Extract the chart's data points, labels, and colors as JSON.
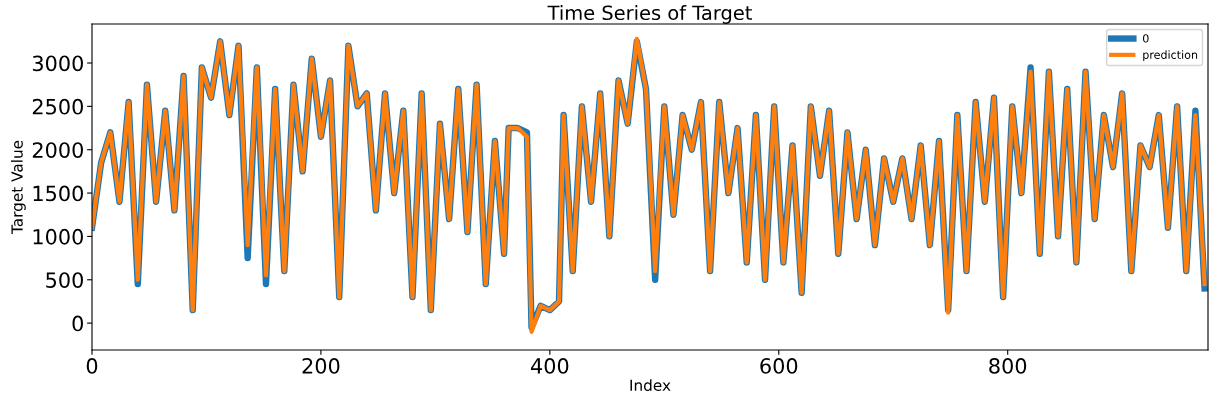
{
  "chart_data": {
    "type": "line",
    "title": "Time Series of Target",
    "xlabel": "Index",
    "ylabel": "Target Value",
    "x": [
      0,
      8,
      16,
      24,
      32,
      40,
      48,
      56,
      64,
      72,
      80,
      88,
      96,
      104,
      112,
      120,
      128,
      136,
      144,
      152,
      160,
      168,
      176,
      184,
      192,
      200,
      208,
      216,
      224,
      232,
      240,
      248,
      256,
      264,
      272,
      280,
      288,
      296,
      304,
      312,
      320,
      328,
      336,
      344,
      352,
      360,
      364,
      372,
      380,
      384,
      392,
      400,
      408,
      412,
      420,
      428,
      436,
      444,
      452,
      460,
      468,
      476,
      484,
      492,
      500,
      508,
      516,
      524,
      532,
      540,
      548,
      556,
      564,
      572,
      580,
      588,
      596,
      604,
      612,
      620,
      628,
      636,
      644,
      652,
      660,
      668,
      676,
      684,
      692,
      700,
      708,
      716,
      724,
      732,
      740,
      748,
      756,
      764,
      772,
      780,
      788,
      796,
      804,
      812,
      820,
      828,
      836,
      844,
      852,
      860,
      868,
      876,
      884,
      892,
      900,
      908,
      916,
      924,
      932,
      940,
      948,
      956,
      964,
      972
    ],
    "series": [
      {
        "name": "0",
        "color": "#1f77b4",
        "values": [
          1100,
          1850,
          2200,
          1400,
          2550,
          450,
          2750,
          1400,
          2450,
          1300,
          2850,
          150,
          2950,
          2600,
          3250,
          2400,
          3200,
          750,
          2950,
          450,
          2700,
          600,
          2750,
          1750,
          3050,
          2150,
          2800,
          300,
          3200,
          2500,
          2650,
          1300,
          2650,
          1500,
          2450,
          300,
          2650,
          150,
          2300,
          1200,
          2700,
          1050,
          2750,
          450,
          2100,
          800,
          2250,
          2250,
          2200,
          -50,
          200,
          150,
          250,
          2400,
          600,
          2500,
          1400,
          2650,
          1000,
          2800,
          2300,
          3250,
          2700,
          500,
          2500,
          1250,
          2400,
          2000,
          2550,
          600,
          2550,
          1500,
          2250,
          700,
          2400,
          500,
          2500,
          700,
          2050,
          350,
          2500,
          1700,
          2450,
          800,
          2200,
          1200,
          2000,
          900,
          1900,
          1400,
          1900,
          1200,
          2050,
          900,
          2100,
          150,
          2400,
          600,
          2550,
          1400,
          2600,
          300,
          2500,
          1500,
          2950,
          800,
          2900,
          1000,
          2700,
          700,
          2900,
          1200,
          2400,
          1800,
          2650,
          600,
          2050,
          1800,
          2400,
          1100,
          2500,
          600,
          2450,
          400
        ]
      },
      {
        "name": "prediction",
        "color": "#ff7f0e",
        "values": [
          1100,
          1850,
          2200,
          1400,
          2550,
          500,
          2750,
          1400,
          2450,
          1300,
          2850,
          150,
          2950,
          2600,
          3250,
          2400,
          3200,
          900,
          2950,
          550,
          2700,
          600,
          2750,
          1750,
          3050,
          2150,
          2800,
          300,
          3200,
          2500,
          2650,
          1300,
          2650,
          1500,
          2450,
          300,
          2650,
          150,
          2300,
          1200,
          2700,
          1050,
          2750,
          450,
          2100,
          800,
          2250,
          2250,
          2150,
          -100,
          200,
          150,
          250,
          2400,
          600,
          2500,
          1400,
          2650,
          1000,
          2800,
          2300,
          3280,
          2700,
          600,
          2500,
          1250,
          2400,
          2000,
          2550,
          600,
          2550,
          1500,
          2250,
          700,
          2400,
          500,
          2500,
          700,
          2050,
          350,
          2500,
          1700,
          2450,
          800,
          2200,
          1200,
          2000,
          900,
          1900,
          1400,
          1900,
          1200,
          2050,
          900,
          2100,
          120,
          2400,
          600,
          2550,
          1400,
          2600,
          300,
          2500,
          1500,
          2900,
          800,
          2900,
          1000,
          2700,
          700,
          2900,
          1200,
          2400,
          1800,
          2650,
          600,
          2050,
          1800,
          2400,
          1100,
          2500,
          600,
          2400,
          450
        ]
      }
    ],
    "xlim": [
      0,
      975
    ],
    "ylim": [
      -310,
      3450
    ],
    "xticks": [
      0,
      200,
      400,
      600,
      800
    ],
    "yticks": [
      0,
      500,
      1000,
      1500,
      2000,
      2500,
      3000
    ],
    "legend": "top right",
    "grid": false
  }
}
